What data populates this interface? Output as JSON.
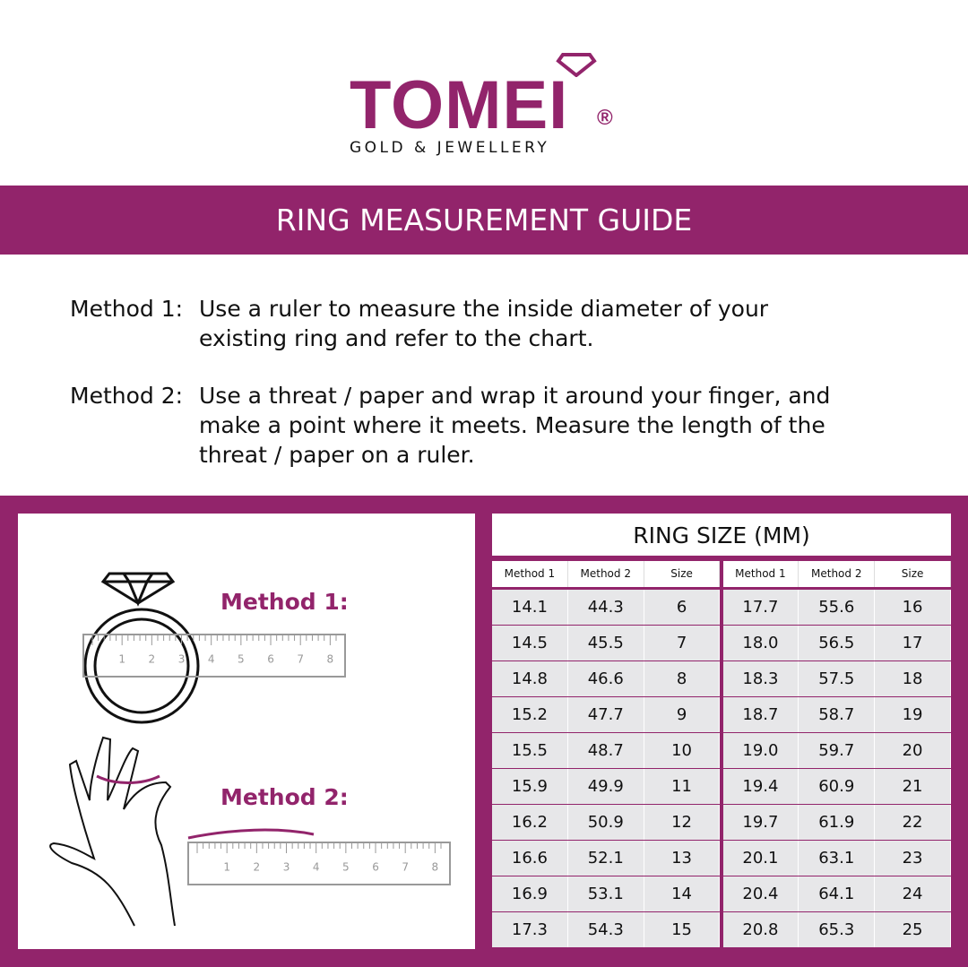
{
  "logo": {
    "brand": "TOMEI",
    "registered": "®",
    "tagline": "GOLD & JEWELLERY"
  },
  "banner": "RING MEASUREMENT GUIDE",
  "methods": [
    {
      "label": "Method 1:",
      "text": "Use a ruler to measure the inside diameter of your existing ring and refer to the chart."
    },
    {
      "label": "Method 2:",
      "text": "Use a threat / paper and wrap it around your finger, and make a point where it meets. Measure the length of the threat / paper on a ruler."
    }
  ],
  "illustration": {
    "method1_label": "Method 1:",
    "method2_label": "Method 2:",
    "ruler_ticks": [
      "1",
      "2",
      "3",
      "4",
      "5",
      "6",
      "7",
      "8"
    ]
  },
  "colors": {
    "brand": "#92246b",
    "cell": "#e7e7e9"
  },
  "table": {
    "title": "RING SIZE (MM)",
    "headers": [
      "Method 1",
      "Method 2",
      "Size"
    ],
    "left": [
      [
        "14.1",
        "44.3",
        "6"
      ],
      [
        "14.5",
        "45.5",
        "7"
      ],
      [
        "14.8",
        "46.6",
        "8"
      ],
      [
        "15.2",
        "47.7",
        "9"
      ],
      [
        "15.5",
        "48.7",
        "10"
      ],
      [
        "15.9",
        "49.9",
        "11"
      ],
      [
        "16.2",
        "50.9",
        "12"
      ],
      [
        "16.6",
        "52.1",
        "13"
      ],
      [
        "16.9",
        "53.1",
        "14"
      ],
      [
        "17.3",
        "54.3",
        "15"
      ]
    ],
    "right": [
      [
        "17.7",
        "55.6",
        "16"
      ],
      [
        "18.0",
        "56.5",
        "17"
      ],
      [
        "18.3",
        "57.5",
        "18"
      ],
      [
        "18.7",
        "58.7",
        "19"
      ],
      [
        "19.0",
        "59.7",
        "20"
      ],
      [
        "19.4",
        "60.9",
        "21"
      ],
      [
        "19.7",
        "61.9",
        "22"
      ],
      [
        "20.1",
        "63.1",
        "23"
      ],
      [
        "20.4",
        "64.1",
        "24"
      ],
      [
        "20.8",
        "65.3",
        "25"
      ]
    ]
  }
}
